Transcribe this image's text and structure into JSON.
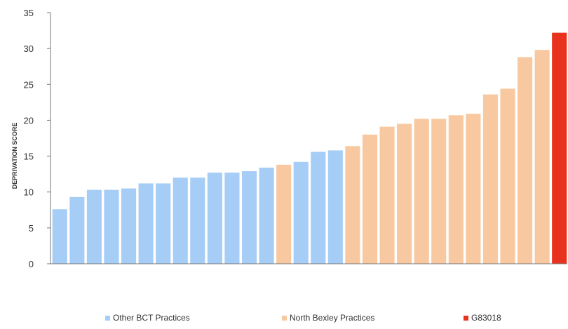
{
  "chart_data": {
    "type": "bar",
    "title": "",
    "xlabel": "",
    "ylabel": "DEPRIVATION SCORE",
    "ylim": [
      0,
      35
    ],
    "yticks": [
      "0",
      "5",
      "10",
      "15",
      "20",
      "25",
      "30",
      "35"
    ],
    "grid": false,
    "legend_position": "bottom",
    "colors": {
      "Other BCT Practices": "#a6cdf5",
      "North Bexley Practices": "#f8c9a0",
      "G83018": "#e8321e"
    },
    "legend": [
      "Other BCT Practices",
      "North Bexley Practices",
      "G83018"
    ],
    "values": [
      7.6,
      9.3,
      10.3,
      10.3,
      10.5,
      11.2,
      11.2,
      12.0,
      12.0,
      12.7,
      12.7,
      12.9,
      13.4,
      13.8,
      14.2,
      15.6,
      15.8,
      16.4,
      18.0,
      19.1,
      19.5,
      20.2,
      20.2,
      20.7,
      20.9,
      23.6,
      24.4,
      28.8,
      29.8,
      32.2
    ],
    "groups": [
      "Other BCT Practices",
      "Other BCT Practices",
      "Other BCT Practices",
      "Other BCT Practices",
      "Other BCT Practices",
      "Other BCT Practices",
      "Other BCT Practices",
      "Other BCT Practices",
      "Other BCT Practices",
      "Other BCT Practices",
      "Other BCT Practices",
      "Other BCT Practices",
      "Other BCT Practices",
      "North Bexley Practices",
      "Other BCT Practices",
      "Other BCT Practices",
      "Other BCT Practices",
      "North Bexley Practices",
      "North Bexley Practices",
      "North Bexley Practices",
      "North Bexley Practices",
      "North Bexley Practices",
      "North Bexley Practices",
      "North Bexley Practices",
      "North Bexley Practices",
      "North Bexley Practices",
      "North Bexley Practices",
      "North Bexley Practices",
      "North Bexley Practices",
      "G83018"
    ]
  }
}
